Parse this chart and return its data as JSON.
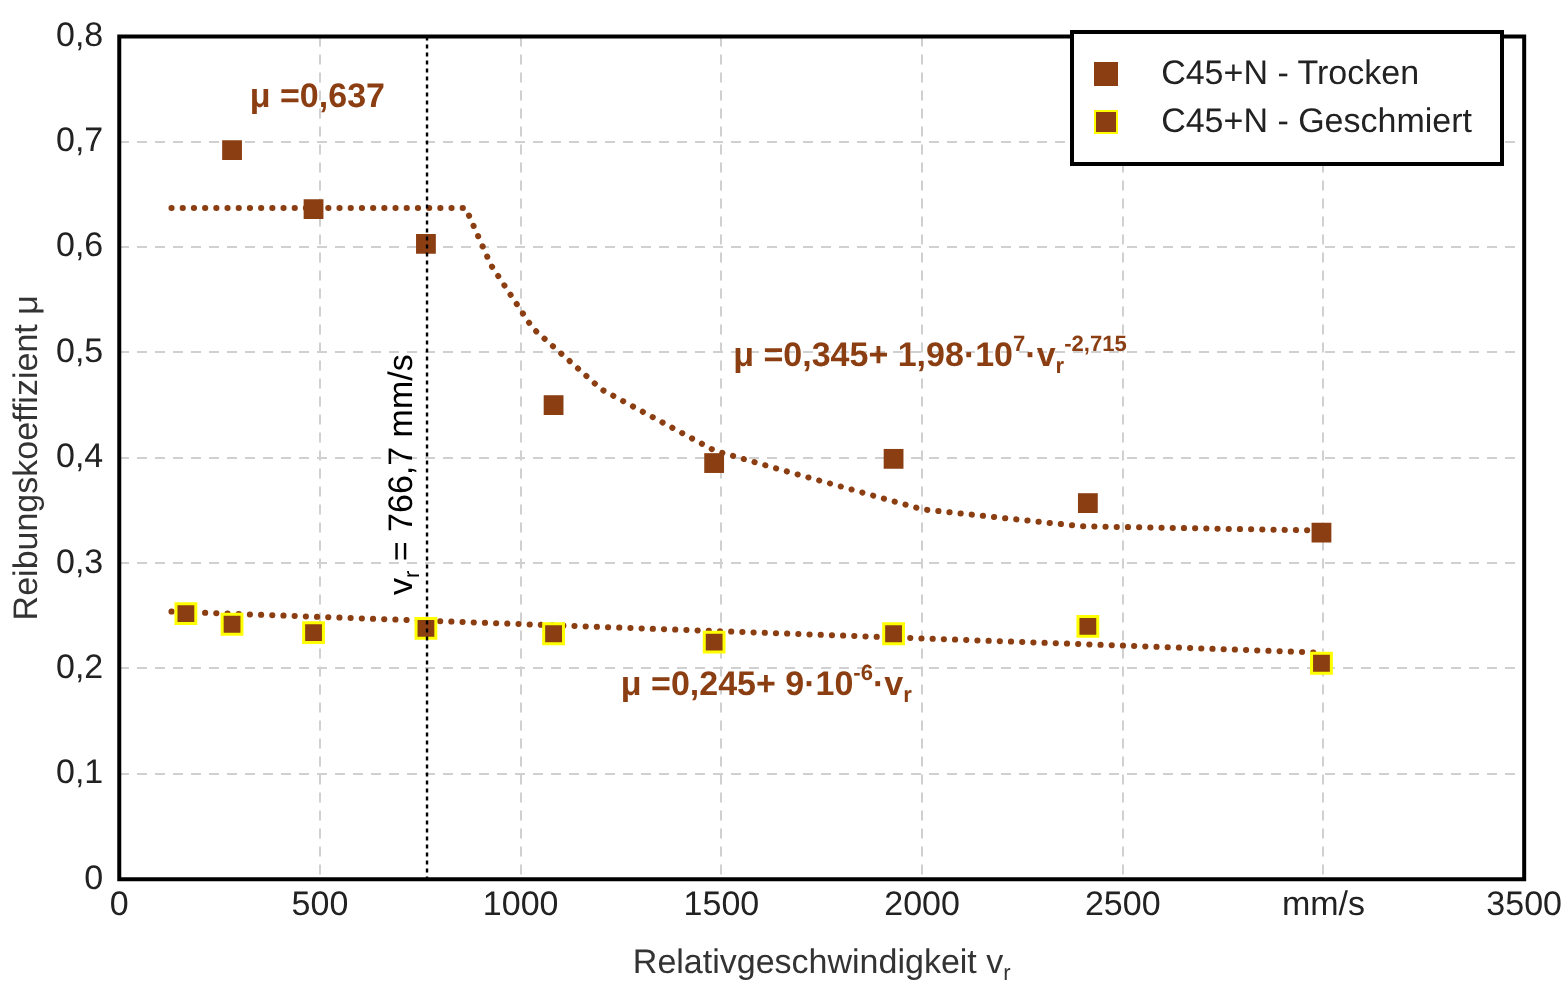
{
  "chart_data": {
    "type": "scatter",
    "xlabel": "Relativgeschwindigkeit v$_{r}$",
    "ylabel": "Reibungskoeffizient μ",
    "series": [
      {
        "name": "C45+N - Trocken",
        "color": "#8b3e12",
        "x": [
          281,
          484,
          764,
          1082,
          1482,
          1929,
          2413,
          2995
        ],
        "values": [
          0.692,
          0.636,
          0.603,
          0.45,
          0.395,
          0.399,
          0.357,
          0.329
        ]
      },
      {
        "name": "C45+N - Geschmiert",
        "color": "#8b3e12",
        "x": [
          166,
          281,
          484,
          764,
          1082,
          1482,
          1929,
          2413,
          2995
        ],
        "values": [
          0.252,
          0.242,
          0.234,
          0.238,
          0.233,
          0.225,
          0.233,
          0.24,
          0.205
        ]
      },
      {
        "type": "line",
        "color": "#8b3e12",
        "line_style": "dotted",
        "marker": "none",
        "x": [
          130,
          863,
          926,
          1030,
          1201,
          1482,
          1654,
          2002,
          2397,
          2990
        ],
        "values": [
          0.637,
          0.637,
          0.583,
          0.523,
          0.465,
          0.407,
          0.388,
          0.351,
          0.335,
          0.331
        ]
      },
      {
        "type": "line",
        "color": "#8b3e12",
        "line_style": "dotted",
        "marker": "none",
        "x": [
          130,
          2995
        ],
        "values": [
          0.254,
          0.215
        ]
      }
    ],
    "xlim": [
      0,
      3500
    ],
    "xticks": [
      0,
      500,
      1000,
      1500,
      2000,
      2500,
      {
        "value": 3000,
        "label": "mm/s"
      },
      3500
    ],
    "ylim": [
      0,
      0.8
    ],
    "yticks": [
      0,
      {
        "value": 0.1,
        "label": "0,1"
      },
      {
        "value": 0.2,
        "label": "0,2"
      },
      {
        "value": 0.3,
        "label": "0,3"
      },
      {
        "value": 0.4,
        "label": "0,4"
      },
      {
        "value": 0.5,
        "label": "0,5"
      },
      {
        "value": 0.6,
        "label": "0,6"
      },
      {
        "value": 0.7,
        "label": "0,7"
      },
      {
        "value": 0.8,
        "label": "0,8"
      }
    ],
    "grid": true,
    "legend": "top right",
    "marker": "square",
    "ref_lines": [
      {
        "axis": "x",
        "value": 766.7,
        "label": "v$_{r}$ = 766,7 mm/s",
        "color": "#000000",
        "line_style": "dotted"
      }
    ],
    "annotations": [
      "μ =0,637",
      "μ =0,345+ 1,98·10$^{7}$·v$_{r}$$^{-2,715}$",
      "μ =0,245+ 9·10$^{-6}$·v$_{r}$"
    ]
  }
}
